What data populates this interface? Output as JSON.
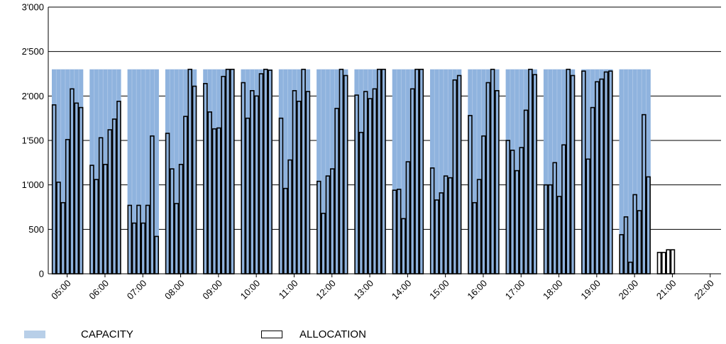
{
  "chart_data": {
    "type": "bar",
    "y_ticks": [
      "0",
      "500",
      "1'000",
      "1'500",
      "2'000",
      "2'500",
      "3'000"
    ],
    "x_ticks": [
      "05:00",
      "06:00",
      "07:00",
      "08:00",
      "09:00",
      "10:00",
      "11:00",
      "12:00",
      "13:00",
      "14:00",
      "15:00",
      "16:00",
      "17:00",
      "18:00",
      "19:00",
      "20:00",
      "21:00",
      "22:00"
    ],
    "ylim": [
      0,
      3000
    ],
    "grid": true,
    "legend_position": "bottom-left",
    "colors": {
      "capacity": "#8fb3de",
      "capacity_legend": "#b8cfe8",
      "allocation_stroke": "#000000"
    },
    "series": [
      {
        "name": "CAPACITY",
        "kind": "band",
        "value": 2300,
        "hours": [
          "05:00",
          "06:00",
          "07:00",
          "08:00",
          "09:00",
          "10:00",
          "11:00",
          "12:00",
          "13:00",
          "14:00",
          "15:00",
          "16:00",
          "17:00",
          "18:00",
          "19:00",
          "20:00"
        ]
      },
      {
        "name": "ALLOCATION",
        "kind": "bars",
        "hours": [
          {
            "hour": "05:00",
            "values": [
              1900,
              1030,
              800,
              1510,
              2080,
              1920,
              1870
            ]
          },
          {
            "hour": "06:00",
            "values": [
              1220,
              1060,
              1530,
              1230,
              1620,
              1740,
              1940
            ]
          },
          {
            "hour": "07:00",
            "values": [
              770,
              570,
              770,
              570,
              770,
              1550,
              420
            ]
          },
          {
            "hour": "08:00",
            "values": [
              1580,
              1180,
              790,
              1230,
              1770,
              2300,
              2110
            ]
          },
          {
            "hour": "09:00",
            "values": [
              2140,
              1820,
              1630,
              1640,
              2220,
              2300,
              2300
            ]
          },
          {
            "hour": "10:00",
            "values": [
              2150,
              1750,
              2060,
              2000,
              2250,
              2300,
              2290
            ]
          },
          {
            "hour": "11:00",
            "values": [
              1750,
              960,
              1280,
              2060,
              1940,
              2300,
              2050
            ]
          },
          {
            "hour": "12:00",
            "values": [
              1040,
              680,
              1100,
              1180,
              1860,
              2300,
              2230
            ]
          },
          {
            "hour": "13:00",
            "values": [
              2010,
              1590,
              2050,
              1970,
              2080,
              2300,
              2300
            ]
          },
          {
            "hour": "14:00",
            "values": [
              940,
              950,
              620,
              1260,
              2080,
              2300,
              2300
            ]
          },
          {
            "hour": "15:00",
            "values": [
              1190,
              830,
              910,
              1100,
              1080,
              2180,
              2230
            ]
          },
          {
            "hour": "16:00",
            "values": [
              1780,
              800,
              1060,
              1550,
              2150,
              2300,
              2060
            ]
          },
          {
            "hour": "17:00",
            "values": [
              1500,
              1390,
              1160,
              1420,
              1840,
              2300,
              2240
            ]
          },
          {
            "hour": "18:00",
            "values": [
              1000,
              1000,
              1250,
              870,
              1450,
              2300,
              2230
            ]
          },
          {
            "hour": "19:00",
            "values": [
              2280,
              1290,
              1870,
              2160,
              2190,
              2270,
              2280
            ]
          },
          {
            "hour": "20:00",
            "values": [
              440,
              640,
              130,
              890,
              710,
              1790,
              1090
            ]
          },
          {
            "hour": "21:00",
            "values": [
              240,
              240,
              270,
              270
            ]
          }
        ]
      }
    ],
    "legend": [
      "CAPACITY",
      "ALLOCATION"
    ]
  }
}
